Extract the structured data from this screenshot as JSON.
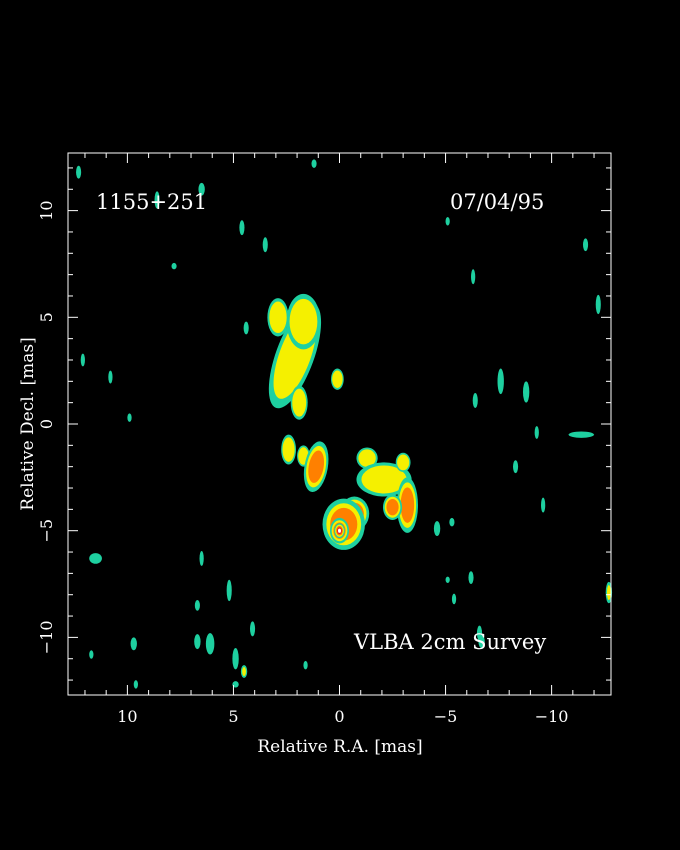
{
  "chart_data": {
    "type": "heatmap",
    "title": "1155+251",
    "date": "07/04/95",
    "annotation": "VLBA 2cm Survey",
    "xlabel": "Relative R.A. [mas]",
    "ylabel": "Relative Decl. [mas]",
    "xlim": [
      12.8,
      -12.8
    ],
    "ylim": [
      -12.7,
      12.7
    ],
    "x_ticks": [
      10,
      5,
      0,
      -5,
      -10
    ],
    "x_tick_labels": [
      "10",
      "5",
      "0",
      "−5",
      "−10"
    ],
    "y_ticks": [
      10,
      5,
      0,
      -5,
      -10
    ],
    "y_tick_labels": [
      "10",
      "5",
      "0",
      "−5",
      "−10"
    ],
    "colors": {
      "background": "#000000",
      "frame": "#ffffff",
      "level_low": "#1ed0a0",
      "level_mid": "#f5f000",
      "level_high": "#ff8000",
      "level_peak": "#e82020",
      "core": "#ffffff"
    },
    "components": [
      {
        "x": 2.1,
        "y": 3.2,
        "rx": 0.9,
        "ry": 2.6,
        "rot": 20,
        "level": 2
      },
      {
        "x": 1.7,
        "y": 4.8,
        "rx": 0.8,
        "ry": 1.3,
        "rot": 0,
        "level": 2
      },
      {
        "x": 2.9,
        "y": 5.0,
        "rx": 0.5,
        "ry": 0.9,
        "rot": 0,
        "level": 2
      },
      {
        "x": 1.9,
        "y": 1.0,
        "rx": 0.4,
        "ry": 0.8,
        "rot": 0,
        "level": 2
      },
      {
        "x": 0.1,
        "y": 2.1,
        "rx": 0.3,
        "ry": 0.5,
        "rot": 0,
        "level": 2
      },
      {
        "x": 2.4,
        "y": -1.2,
        "rx": 0.35,
        "ry": 0.7,
        "rot": 0,
        "level": 2
      },
      {
        "x": 1.7,
        "y": -1.5,
        "rx": 0.3,
        "ry": 0.5,
        "rot": 0,
        "level": 2
      },
      {
        "x": 1.1,
        "y": -2.0,
        "rx": 0.55,
        "ry": 1.2,
        "rot": 10,
        "level": 3
      },
      {
        "x": -1.3,
        "y": -1.6,
        "rx": 0.5,
        "ry": 0.5,
        "rot": 0,
        "level": 2
      },
      {
        "x": -2.1,
        "y": -2.6,
        "rx": 1.3,
        "ry": 0.8,
        "rot": 0,
        "level": 2
      },
      {
        "x": -3.2,
        "y": -3.8,
        "rx": 0.5,
        "ry": 1.3,
        "rot": 0,
        "level": 3
      },
      {
        "x": -2.5,
        "y": -3.9,
        "rx": 0.45,
        "ry": 0.6,
        "rot": 0,
        "level": 3
      },
      {
        "x": -3.0,
        "y": -1.8,
        "rx": 0.35,
        "ry": 0.45,
        "rot": 0,
        "level": 2
      },
      {
        "x": -0.7,
        "y": -4.2,
        "rx": 0.7,
        "ry": 0.8,
        "rot": 0,
        "level": 3
      },
      {
        "x": -0.2,
        "y": -4.7,
        "rx": 1.0,
        "ry": 1.2,
        "rot": 0,
        "level": 3
      },
      {
        "x": 0.0,
        "y": -5.0,
        "rx": 0.45,
        "ry": 0.6,
        "rot": 0,
        "level": 4
      },
      {
        "x": 0.0,
        "y": -5.0,
        "rx": 0.25,
        "ry": 0.35,
        "rot": 0,
        "level": 5
      }
    ],
    "noise": [
      {
        "x": 12.3,
        "y": 11.8,
        "rx": 0.12,
        "ry": 0.3,
        "level": 1
      },
      {
        "x": 8.6,
        "y": 10.5,
        "rx": 0.12,
        "ry": 0.4,
        "level": 1
      },
      {
        "x": 6.5,
        "y": 11.0,
        "rx": 0.15,
        "ry": 0.3,
        "level": 1
      },
      {
        "x": 4.6,
        "y": 9.2,
        "rx": 0.12,
        "ry": 0.35,
        "level": 1
      },
      {
        "x": 3.5,
        "y": 8.4,
        "rx": 0.12,
        "ry": 0.35,
        "level": 1
      },
      {
        "x": 1.2,
        "y": 12.2,
        "rx": 0.12,
        "ry": 0.2,
        "level": 1
      },
      {
        "x": 7.8,
        "y": 7.4,
        "rx": 0.12,
        "ry": 0.15,
        "level": 1
      },
      {
        "x": 4.4,
        "y": 4.5,
        "rx": 0.12,
        "ry": 0.3,
        "level": 1
      },
      {
        "x": -5.1,
        "y": 9.5,
        "rx": 0.1,
        "ry": 0.2,
        "level": 1
      },
      {
        "x": -6.3,
        "y": 6.9,
        "rx": 0.1,
        "ry": 0.35,
        "level": 1
      },
      {
        "x": -11.6,
        "y": 8.4,
        "rx": 0.12,
        "ry": 0.3,
        "level": 1
      },
      {
        "x": -12.2,
        "y": 5.6,
        "rx": 0.12,
        "ry": 0.45,
        "level": 1
      },
      {
        "x": -6.4,
        "y": 1.1,
        "rx": 0.12,
        "ry": 0.35,
        "level": 1
      },
      {
        "x": -7.6,
        "y": 2.0,
        "rx": 0.15,
        "ry": 0.6,
        "level": 1
      },
      {
        "x": -8.8,
        "y": 1.5,
        "rx": 0.15,
        "ry": 0.5,
        "level": 1
      },
      {
        "x": -9.3,
        "y": -0.4,
        "rx": 0.1,
        "ry": 0.3,
        "level": 1
      },
      {
        "x": -11.4,
        "y": -0.5,
        "rx": 0.6,
        "ry": 0.15,
        "level": 1
      },
      {
        "x": -8.3,
        "y": -2.0,
        "rx": 0.12,
        "ry": 0.3,
        "level": 1
      },
      {
        "x": -9.6,
        "y": -3.8,
        "rx": 0.1,
        "ry": 0.35,
        "level": 1
      },
      {
        "x": -4.6,
        "y": -4.9,
        "rx": 0.15,
        "ry": 0.35,
        "level": 1
      },
      {
        "x": -5.3,
        "y": -4.6,
        "rx": 0.12,
        "ry": 0.2,
        "level": 1
      },
      {
        "x": -6.2,
        "y": -7.2,
        "rx": 0.12,
        "ry": 0.3,
        "level": 1
      },
      {
        "x": -5.1,
        "y": -7.3,
        "rx": 0.1,
        "ry": 0.15,
        "level": 1
      },
      {
        "x": -5.4,
        "y": -8.2,
        "rx": 0.1,
        "ry": 0.25,
        "level": 1
      },
      {
        "x": -6.6,
        "y": -9.8,
        "rx": 0.12,
        "ry": 0.35,
        "level": 1
      },
      {
        "x": -12.7,
        "y": -7.9,
        "rx": 0.15,
        "ry": 0.5,
        "level": 2
      },
      {
        "x": 12.1,
        "y": 3.0,
        "rx": 0.1,
        "ry": 0.3,
        "level": 1
      },
      {
        "x": 10.8,
        "y": 2.2,
        "rx": 0.1,
        "ry": 0.3,
        "level": 1
      },
      {
        "x": 9.9,
        "y": 0.3,
        "rx": 0.1,
        "ry": 0.2,
        "level": 1
      },
      {
        "x": 11.5,
        "y": -6.3,
        "rx": 0.3,
        "ry": 0.25,
        "level": 1
      },
      {
        "x": 6.5,
        "y": -6.3,
        "rx": 0.1,
        "ry": 0.35,
        "level": 1
      },
      {
        "x": 5.2,
        "y": -7.8,
        "rx": 0.12,
        "ry": 0.5,
        "level": 1
      },
      {
        "x": 6.7,
        "y": -8.5,
        "rx": 0.12,
        "ry": 0.25,
        "level": 1
      },
      {
        "x": 6.1,
        "y": -10.3,
        "rx": 0.2,
        "ry": 0.5,
        "level": 1
      },
      {
        "x": 6.7,
        "y": -10.2,
        "rx": 0.15,
        "ry": 0.35,
        "level": 1
      },
      {
        "x": 4.1,
        "y": -9.6,
        "rx": 0.12,
        "ry": 0.35,
        "level": 1
      },
      {
        "x": 4.9,
        "y": -11.0,
        "rx": 0.15,
        "ry": 0.5,
        "level": 1
      },
      {
        "x": 4.5,
        "y": -11.6,
        "rx": 0.15,
        "ry": 0.3,
        "level": 2
      },
      {
        "x": 9.7,
        "y": -10.3,
        "rx": 0.15,
        "ry": 0.3,
        "level": 1
      },
      {
        "x": 11.7,
        "y": -10.8,
        "rx": 0.1,
        "ry": 0.2,
        "level": 1
      },
      {
        "x": 9.6,
        "y": -12.2,
        "rx": 0.1,
        "ry": 0.2,
        "level": 1
      },
      {
        "x": 4.9,
        "y": -12.2,
        "rx": 0.15,
        "ry": 0.15,
        "level": 1
      },
      {
        "x": 1.6,
        "y": -11.3,
        "rx": 0.1,
        "ry": 0.2,
        "level": 1
      },
      {
        "x": -6.7,
        "y": -10.2,
        "rx": 0.15,
        "ry": 0.3,
        "level": 1
      }
    ]
  }
}
